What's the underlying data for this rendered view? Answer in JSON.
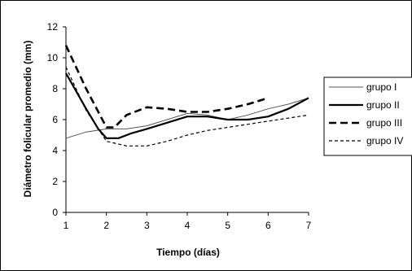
{
  "chart_data": {
    "type": "line",
    "title": "",
    "xlabel": "Tiempo (días)",
    "ylabel": "Diámetro folicular promedio (mm)",
    "xlim": [
      1,
      7
    ],
    "ylim": [
      0,
      12
    ],
    "x_ticks": [
      "1",
      "2",
      "3",
      "4",
      "5",
      "6",
      "7"
    ],
    "y_ticks": [
      "0",
      "2",
      "4",
      "6",
      "8",
      "10",
      "12"
    ],
    "grid": false,
    "legend_position": "right",
    "series": [
      {
        "name": "grupo I",
        "color": "#555555",
        "style": "thin-solid",
        "points": [
          [
            1,
            4.8
          ],
          [
            1.5,
            5.2
          ],
          [
            2,
            5.4
          ],
          [
            2.5,
            5.4
          ],
          [
            3,
            5.6
          ],
          [
            3.5,
            6.0
          ],
          [
            4,
            6.4
          ],
          [
            4.5,
            6.3
          ],
          [
            5,
            6.0
          ],
          [
            5.5,
            6.3
          ],
          [
            6,
            6.7
          ],
          [
            6.5,
            7.0
          ],
          [
            7,
            7.4
          ]
        ]
      },
      {
        "name": "grupo II",
        "color": "#000000",
        "style": "thick-solid",
        "points": [
          [
            1,
            9.0
          ],
          [
            1.5,
            6.7
          ],
          [
            1.8,
            5.4
          ],
          [
            2,
            4.8
          ],
          [
            2.3,
            4.8
          ],
          [
            2.6,
            5.1
          ],
          [
            3,
            5.4
          ],
          [
            3.5,
            5.8
          ],
          [
            4,
            6.2
          ],
          [
            4.5,
            6.2
          ],
          [
            5,
            6.0
          ],
          [
            5.5,
            6.0
          ],
          [
            6,
            6.2
          ],
          [
            6.5,
            6.7
          ],
          [
            7,
            7.4
          ]
        ]
      },
      {
        "name": "grupo III",
        "color": "#000000",
        "style": "thick-dash",
        "points": [
          [
            1,
            10.8
          ],
          [
            1.5,
            8.0
          ],
          [
            2,
            5.5
          ],
          [
            2.2,
            5.5
          ],
          [
            2.5,
            6.3
          ],
          [
            3,
            6.8
          ],
          [
            3.5,
            6.7
          ],
          [
            4,
            6.5
          ],
          [
            4.5,
            6.5
          ],
          [
            5,
            6.7
          ],
          [
            5.5,
            7.0
          ],
          [
            6,
            7.4
          ]
        ]
      },
      {
        "name": "grupo IV",
        "color": "#000000",
        "style": "thin-dash",
        "points": [
          [
            1,
            9.4
          ],
          [
            1.5,
            6.6
          ],
          [
            2,
            4.6
          ],
          [
            2.5,
            4.3
          ],
          [
            3,
            4.3
          ],
          [
            3.5,
            4.6
          ],
          [
            4,
            5.0
          ],
          [
            4.5,
            5.3
          ],
          [
            5,
            5.5
          ],
          [
            5.5,
            5.7
          ],
          [
            6,
            5.9
          ],
          [
            6.5,
            6.1
          ],
          [
            7,
            6.3
          ]
        ]
      }
    ]
  }
}
